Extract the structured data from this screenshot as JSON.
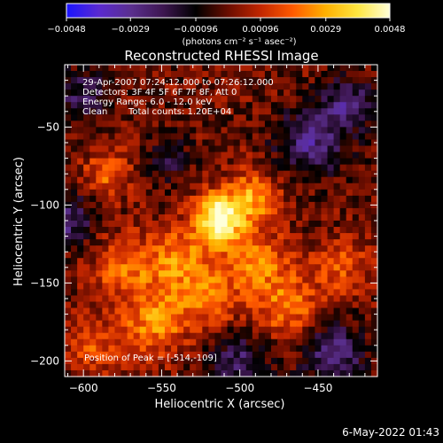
{
  "chart_data": {
    "type": "heatmap",
    "title": "Reconstructed RHESSI Image",
    "xlabel": "Heliocentric X (arcsec)",
    "ylabel": "Heliocentric Y (arcsec)",
    "xlim": [
      -612,
      -412
    ],
    "ylim": [
      -210,
      -10
    ],
    "x_ticks": [
      -600,
      -550,
      -500,
      -450
    ],
    "x_tick_labels": [
      "−600",
      "−550",
      "−500",
      "−450"
    ],
    "y_ticks": [
      -50,
      -100,
      -150,
      -200
    ],
    "y_tick_labels": [
      "−50",
      "−100",
      "−150",
      "−200"
    ],
    "colorbar": {
      "min": -0.0048,
      "max": 0.0048,
      "ticks": [
        -0.0048,
        -0.0029,
        -0.00096,
        0.00096,
        0.0029,
        0.0048
      ],
      "tick_labels": [
        "−0.0048",
        "−0.0029",
        "−0.00096",
        "0.00096",
        "0.0029",
        "0.0048"
      ],
      "unit_label": "(photons cm⁻² s⁻¹ asec⁻²)",
      "colormap": [
        "#1a14ff",
        "#5a2ad0",
        "#5a2f8e",
        "#3d1650",
        "#000000",
        "#6a0d00",
        "#c22600",
        "#ff5a00",
        "#ffb000",
        "#ffe640",
        "#ffffd8"
      ]
    },
    "peak": {
      "x": -514,
      "y": -109
    },
    "sources": [
      {
        "x": -514,
        "y": -109,
        "amp": 1.0,
        "sigma": 11
      },
      {
        "x": -492,
        "y": -95,
        "amp": 0.55,
        "sigma": 12
      },
      {
        "x": -540,
        "y": -135,
        "amp": 0.5,
        "sigma": 14
      },
      {
        "x": -490,
        "y": -135,
        "amp": 0.45,
        "sigma": 14
      },
      {
        "x": -575,
        "y": -140,
        "amp": 0.4,
        "sigma": 14
      },
      {
        "x": -555,
        "y": -175,
        "amp": 0.5,
        "sigma": 15
      },
      {
        "x": -470,
        "y": -165,
        "amp": 0.45,
        "sigma": 16
      },
      {
        "x": -520,
        "y": -160,
        "amp": 0.4,
        "sigma": 14
      },
      {
        "x": -585,
        "y": -80,
        "amp": 0.38,
        "sigma": 11
      },
      {
        "x": -595,
        "y": -190,
        "amp": 0.35,
        "sigma": 12
      },
      {
        "x": -435,
        "y": -140,
        "amp": 0.35,
        "sigma": 12
      },
      {
        "x": -455,
        "y": -60,
        "amp": -0.55,
        "sigma": 15
      },
      {
        "x": -430,
        "y": -35,
        "amp": -0.5,
        "sigma": 12
      },
      {
        "x": -610,
        "y": -110,
        "amp": -0.5,
        "sigma": 12
      },
      {
        "x": -440,
        "y": -195,
        "amp": -0.55,
        "sigma": 14
      },
      {
        "x": -600,
        "y": -30,
        "amp": -0.4,
        "sigma": 12
      },
      {
        "x": -545,
        "y": -70,
        "amp": -0.3,
        "sigma": 10
      },
      {
        "x": -500,
        "y": -200,
        "amp": -0.45,
        "sigma": 14
      }
    ]
  },
  "annotations": {
    "time_range": "29-Apr-2007 07:24:12.000 to 07:26:12.000",
    "detectors": "Detectors: 3F 4F 5F 6F 7F 8F, Att 0",
    "energy": "Energy Range: 6.0 - 12.0 keV",
    "method": "Clean",
    "counts": "Total counts: 1.20E+04",
    "peak_label": "Position of Peak = [-514,-109]"
  },
  "footer": {
    "timestamp": "6-May-2022 01:43"
  }
}
